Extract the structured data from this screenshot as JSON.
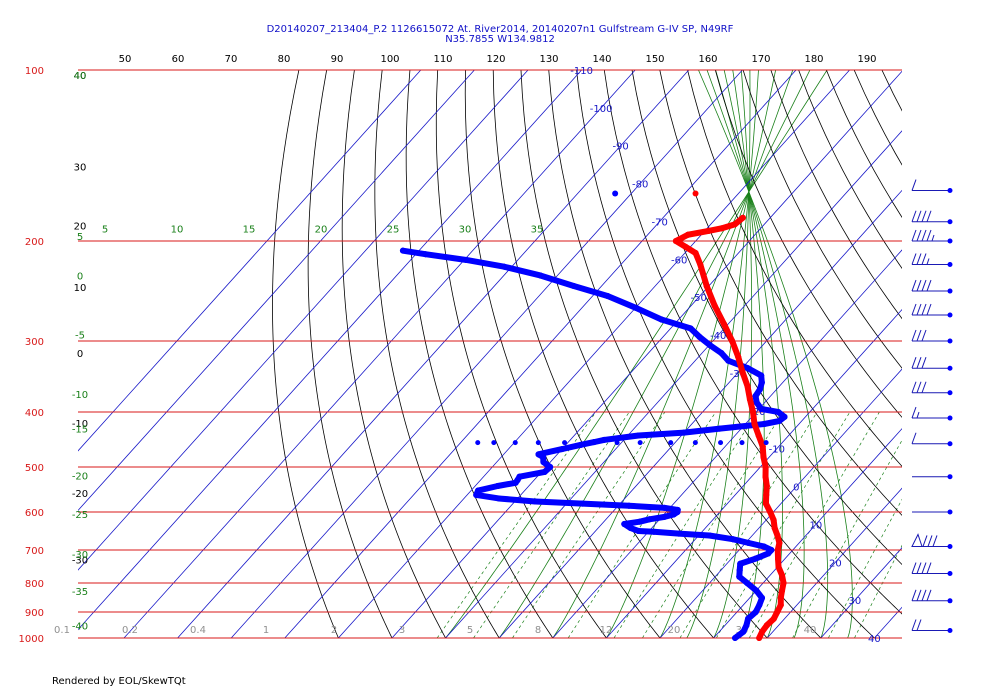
{
  "header": {
    "line1": "D20140207_213404_P.2 1126615072 At. River2014, 20140207n1 Gulfstream G-IV SP, N49RF",
    "line2": "N35.7855 W134.9812"
  },
  "footer": {
    "rendered_by": "Rendered by EOL/SkewTQt"
  },
  "colors": {
    "isobar": "#d81818",
    "isotherm": "#1818c8",
    "dry_adiabat": "#000000",
    "moist_adiabat": "#1a801a",
    "mixing_ratio": "#1a801a",
    "temperature": "#ff0000",
    "dewpoint": "#0000ff"
  },
  "chart_data": {
    "type": "skew-t",
    "pressure_range": [
      1000,
      100
    ],
    "temperature_range": [
      -40,
      50
    ],
    "pressure_labels": [
      "100",
      "200",
      "300",
      "400",
      "500",
      "600",
      "700",
      "800",
      "900",
      "1000"
    ],
    "isobars": [
      100,
      200,
      300,
      400,
      500,
      600,
      700,
      800,
      900,
      1000
    ],
    "top_temperature_labels": [
      "50",
      "60",
      "70",
      "80",
      "90",
      "100",
      "110",
      "120",
      "130",
      "140",
      "150",
      "160",
      "170",
      "180",
      "190"
    ],
    "isotherm_labels": [
      {
        "t": -110,
        "text": "-110"
      },
      {
        "t": -100,
        "text": "-100"
      },
      {
        "t": -90,
        "text": "-90"
      },
      {
        "t": -80,
        "text": "-80"
      },
      {
        "t": -70,
        "text": "-70"
      },
      {
        "t": -60,
        "text": "-60"
      },
      {
        "t": -50,
        "text": "-50"
      },
      {
        "t": -40,
        "text": "-40"
      },
      {
        "t": -30,
        "text": "-30"
      },
      {
        "t": -20,
        "text": "-20"
      },
      {
        "t": -10,
        "text": "-10"
      },
      {
        "t": 0,
        "text": "0"
      },
      {
        "t": 10,
        "text": "10"
      },
      {
        "t": 20,
        "text": "20"
      },
      {
        "t": 30,
        "text": "30"
      },
      {
        "t": 40,
        "text": "40"
      }
    ],
    "left_temperature_labels": [
      {
        "p": 102,
        "text": "40"
      },
      {
        "p": 148,
        "text": "30"
      },
      {
        "p": 188,
        "text": "20"
      },
      {
        "p": 241,
        "text": "10"
      },
      {
        "p": 315,
        "text": "0"
      },
      {
        "p": 418,
        "text": "-10"
      },
      {
        "p": 555,
        "text": "-20"
      },
      {
        "p": 727,
        "text": "-30"
      }
    ],
    "moist_adiabat_labels": [
      {
        "text": "40",
        "p": 102
      },
      {
        "text": "5",
        "p": 196
      },
      {
        "text": "0",
        "p": 230
      },
      {
        "text": "-5",
        "p": 292
      },
      {
        "text": "-10",
        "p": 372
      },
      {
        "text": "-15",
        "p": 428
      },
      {
        "text": "-20",
        "p": 518
      },
      {
        "text": "-25",
        "p": 605
      },
      {
        "text": "-30",
        "p": 711
      },
      {
        "text": "-35",
        "p": 826
      },
      {
        "text": "-40",
        "p": 950
      }
    ],
    "moist_adiabat_top_labels": [
      "5",
      "10",
      "15",
      "20",
      "25",
      "30",
      "35"
    ],
    "mixing_ratio_labels": [
      "0.1",
      "0.2",
      "0.4",
      "1",
      "2",
      "3",
      "5",
      "8",
      "12",
      "20",
      "30",
      "40"
    ],
    "temperature_profile": [
      [
        1000,
        18.5
      ],
      [
        975,
        18
      ],
      [
        950,
        17.8
      ],
      [
        925,
        18
      ],
      [
        900,
        17.5
      ],
      [
        875,
        17
      ],
      [
        850,
        15.8
      ],
      [
        825,
        14.8
      ],
      [
        800,
        13.8
      ],
      [
        775,
        12.2
      ],
      [
        750,
        10.2
      ],
      [
        725,
        8.7
      ],
      [
        700,
        7.2
      ],
      [
        680,
        6.3
      ],
      [
        660,
        4.7
      ],
      [
        640,
        2.9
      ],
      [
        620,
        1.4
      ],
      [
        600,
        -0.6
      ],
      [
        580,
        -2.8
      ],
      [
        560,
        -4.2
      ],
      [
        540,
        -5.6
      ],
      [
        520,
        -7.4
      ],
      [
        500,
        -9.0
      ],
      [
        480,
        -11.1
      ],
      [
        460,
        -13.0
      ],
      [
        440,
        -15.6
      ],
      [
        420,
        -18.3
      ],
      [
        400,
        -20.6
      ],
      [
        380,
        -23.3
      ],
      [
        360,
        -26.0
      ],
      [
        340,
        -29.3
      ],
      [
        320,
        -32.6
      ],
      [
        300,
        -36.4
      ],
      [
        280,
        -40.8
      ],
      [
        260,
        -45.6
      ],
      [
        240,
        -50.4
      ],
      [
        220,
        -55.2
      ],
      [
        210,
        -58.0
      ],
      [
        205,
        -60.8
      ],
      [
        200,
        -63.7
      ],
      [
        195,
        -62.5
      ],
      [
        192,
        -59.3
      ],
      [
        190,
        -57.3
      ],
      [
        187,
        -55.5
      ],
      [
        182,
        -55.1
      ]
    ],
    "dewpoint_profile": [
      [
        1000,
        14
      ],
      [
        975,
        14.5
      ],
      [
        950,
        14
      ],
      [
        925,
        13.2
      ],
      [
        900,
        13.5
      ],
      [
        875,
        13
      ],
      [
        850,
        12.3
      ],
      [
        825,
        10
      ],
      [
        800,
        7
      ],
      [
        780,
        4.5
      ],
      [
        760,
        3.5
      ],
      [
        740,
        2.5
      ],
      [
        725,
        4.5
      ],
      [
        710,
        6
      ],
      [
        700,
        6
      ],
      [
        690,
        4
      ],
      [
        680,
        0.5
      ],
      [
        670,
        -3
      ],
      [
        660,
        -8
      ],
      [
        655,
        -14
      ],
      [
        650,
        -19
      ],
      [
        648,
        -22
      ],
      [
        640,
        -24
      ],
      [
        630,
        -25.8
      ],
      [
        624,
        -23.3
      ],
      [
        618,
        -21.9
      ],
      [
        612,
        -19.5
      ],
      [
        606,
        -18.2
      ],
      [
        600,
        -17.9
      ],
      [
        595,
        -18.2
      ],
      [
        590,
        -21
      ],
      [
        585,
        -28
      ],
      [
        580,
        -37
      ],
      [
        575,
        -46.2
      ],
      [
        568,
        -53.5
      ],
      [
        560,
        -58.3
      ],
      [
        550,
        -58.7
      ],
      [
        540,
        -55.8
      ],
      [
        533,
        -53.0
      ],
      [
        527,
        -53.1
      ],
      [
        520,
        -53.3
      ],
      [
        510,
        -49.4
      ],
      [
        500,
        -49.2
      ],
      [
        490,
        -51.3
      ],
      [
        480,
        -52.2
      ],
      [
        475,
        -53.5
      ],
      [
        465,
        -50.0
      ],
      [
        457,
        -47.2
      ],
      [
        452,
        -45.2
      ],
      [
        448,
        -43.7
      ],
      [
        440,
        -38.0
      ],
      [
        435,
        -30.0
      ],
      [
        428,
        -24.0
      ],
      [
        420,
        -16.5
      ],
      [
        415,
        -14.2
      ],
      [
        408,
        -13.9
      ],
      [
        400,
        -15.9
      ],
      [
        395,
        -19.6
      ],
      [
        385,
        -21.5
      ],
      [
        375,
        -22.8
      ],
      [
        365,
        -23.1
      ],
      [
        355,
        -23.9
      ],
      [
        345,
        -25.2
      ],
      [
        335,
        -28.9
      ],
      [
        325,
        -33.8
      ],
      [
        315,
        -36.4
      ],
      [
        305,
        -39.9
      ],
      [
        295,
        -43.2
      ],
      [
        285,
        -46.3
      ],
      [
        275,
        -53.2
      ],
      [
        262,
        -60.1
      ],
      [
        250,
        -67.2
      ],
      [
        240,
        -75.2
      ],
      [
        230,
        -83.2
      ],
      [
        222,
        -91.4
      ],
      [
        216,
        -99.6
      ],
      [
        211,
        -108.2
      ],
      [
        208,
        -113.0
      ]
    ],
    "dewpoint_moisture_tail": [
      [
        453,
        -13.0
      ],
      [
        453,
        -17.5
      ],
      [
        453,
        -21.5
      ],
      [
        453,
        -26.2
      ],
      [
        453,
        -30.8
      ],
      [
        453,
        -36.5
      ],
      [
        453,
        -40.8
      ],
      [
        453,
        -45.8
      ],
      [
        453,
        -50.6
      ],
      [
        453,
        -55.5
      ],
      [
        453,
        -59.8
      ],
      [
        453,
        -63.8
      ],
      [
        453,
        -66.8
      ]
    ],
    "markers": [
      {
        "p": 165,
        "t": -68,
        "color": "temperature"
      },
      {
        "p": 165,
        "t": -83,
        "color": "dewpoint"
      }
    ],
    "wind_barbs": [
      {
        "p": 163,
        "flags": 0,
        "barbs": 1,
        "half": 0
      },
      {
        "p": 185,
        "flags": 0,
        "barbs": 4,
        "half": 0
      },
      {
        "p": 200,
        "flags": 0,
        "barbs": 4,
        "half": 1
      },
      {
        "p": 220,
        "flags": 0,
        "barbs": 3,
        "half": 1
      },
      {
        "p": 245,
        "flags": 0,
        "barbs": 4,
        "half": 0
      },
      {
        "p": 270,
        "flags": 0,
        "barbs": 4,
        "half": 0
      },
      {
        "p": 300,
        "flags": 0,
        "barbs": 3,
        "half": 0
      },
      {
        "p": 335,
        "flags": 0,
        "barbs": 3,
        "half": 0
      },
      {
        "p": 370,
        "flags": 0,
        "barbs": 3,
        "half": 0
      },
      {
        "p": 410,
        "flags": 0,
        "barbs": 1,
        "half": 1
      },
      {
        "p": 455,
        "flags": 0,
        "barbs": 1,
        "half": 0
      },
      {
        "p": 520,
        "flags": 0,
        "barbs": 0,
        "half": 0
      },
      {
        "p": 600,
        "flags": 0,
        "barbs": 0,
        "half": 0
      },
      {
        "p": 690,
        "flags": 1,
        "barbs": 3,
        "half": 0
      },
      {
        "p": 770,
        "flags": 0,
        "barbs": 4,
        "half": 0
      },
      {
        "p": 860,
        "flags": 0,
        "barbs": 4,
        "half": 0
      },
      {
        "p": 970,
        "flags": 0,
        "barbs": 2,
        "half": 0
      }
    ]
  }
}
